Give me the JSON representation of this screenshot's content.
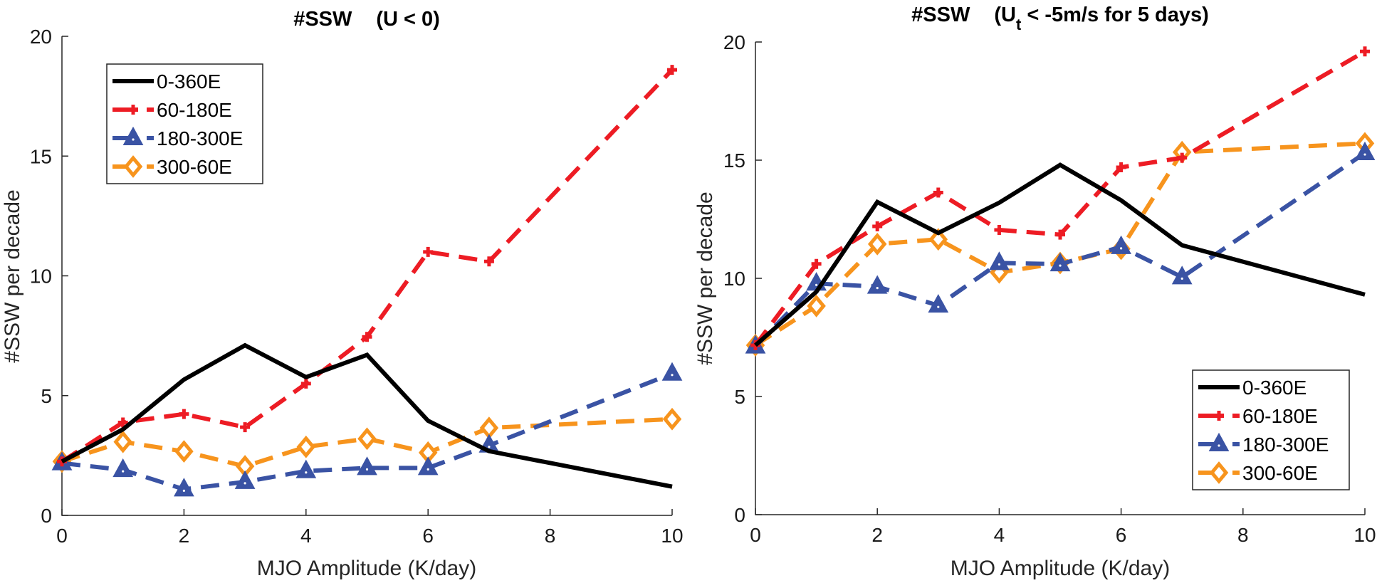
{
  "chart_data": [
    {
      "type": "line",
      "title": "#SSW   (U < 0)",
      "title_parts": {
        "main": "#SSW",
        "paren_open": "(U < 0)",
        "subscript": "",
        "rest": ""
      },
      "xlabel": "MJO Amplitude (K/day)",
      "ylabel": "#SSW per decade",
      "xlim": [
        0,
        10
      ],
      "ylim": [
        0,
        20
      ],
      "xticks": [
        0,
        2,
        4,
        6,
        8,
        10
      ],
      "yticks": [
        0,
        5,
        10,
        15,
        20
      ],
      "grid": false,
      "legend_position": "top-left",
      "x": [
        0,
        1,
        2,
        3,
        4,
        5,
        6,
        7,
        10
      ],
      "series": [
        {
          "name": "0-360E",
          "color": "#000000",
          "style": "solid",
          "marker": "none",
          "values": [
            2.25,
            3.59,
            5.67,
            7.1,
            5.77,
            6.7,
            3.95,
            2.68,
            1.2
          ]
        },
        {
          "name": "60-180E",
          "color": "#ED1C24",
          "style": "dashed",
          "marker": "plus",
          "values": [
            2.25,
            3.88,
            4.23,
            3.68,
            5.5,
            7.45,
            11.0,
            10.6,
            18.6
          ]
        },
        {
          "name": "180-300E",
          "color": "#3A53A4",
          "style": "dashed",
          "marker": "triangle",
          "values": [
            2.18,
            1.9,
            1.09,
            1.4,
            1.85,
            1.98,
            1.98,
            2.92,
            5.92
          ]
        },
        {
          "name": "300-60E",
          "color": "#F7941D",
          "style": "dashed",
          "marker": "diamond",
          "values": [
            2.25,
            3.07,
            2.67,
            2.05,
            2.86,
            3.2,
            2.62,
            3.65,
            4.02
          ]
        }
      ]
    },
    {
      "type": "line",
      "title": "#SSW   (Ut < -5m/s for 5 days)",
      "title_parts": {
        "main": "#SSW",
        "paren_open": "(U",
        "subscript": "t",
        "rest": " < -5m/s for 5 days)"
      },
      "xlabel": "MJO Amplitude (K/day)",
      "ylabel": "#SSW per decade",
      "xlim": [
        0,
        10
      ],
      "ylim": [
        0,
        20
      ],
      "xticks": [
        0,
        2,
        4,
        6,
        8,
        10
      ],
      "yticks": [
        0,
        5,
        10,
        15,
        20
      ],
      "grid": false,
      "legend_position": "bottom-right",
      "x": [
        0,
        1,
        2,
        3,
        4,
        5,
        6,
        7,
        10
      ],
      "series": [
        {
          "name": "0-360E",
          "color": "#000000",
          "style": "solid",
          "marker": "none",
          "values": [
            7.17,
            9.43,
            13.23,
            11.92,
            13.2,
            14.8,
            13.3,
            11.4,
            9.31
          ]
        },
        {
          "name": "60-180E",
          "color": "#ED1C24",
          "style": "dashed",
          "marker": "plus",
          "values": [
            7.17,
            10.61,
            12.2,
            13.63,
            12.05,
            11.85,
            14.7,
            15.1,
            19.6
          ]
        },
        {
          "name": "180-300E",
          "color": "#3A53A4",
          "style": "dashed",
          "marker": "triangle",
          "values": [
            7.12,
            9.78,
            9.65,
            8.85,
            10.65,
            10.6,
            11.33,
            10.05,
            15.3
          ]
        },
        {
          "name": "300-60E",
          "color": "#F7941D",
          "style": "dashed",
          "marker": "diamond",
          "values": [
            7.17,
            8.83,
            11.45,
            11.65,
            10.25,
            10.65,
            11.25,
            15.34,
            15.71
          ]
        }
      ]
    }
  ]
}
